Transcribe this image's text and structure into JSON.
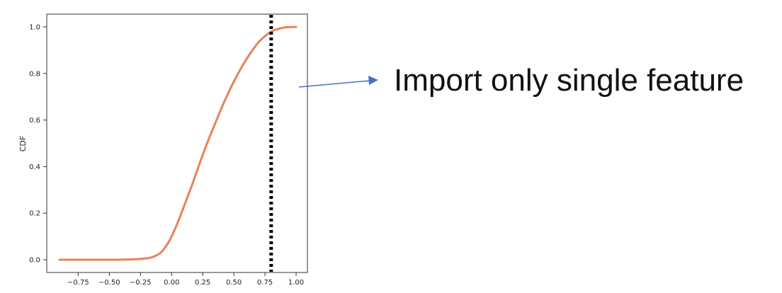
{
  "chart_data": {
    "type": "line",
    "title": "",
    "xlabel": "",
    "ylabel": "CDF",
    "xlim": [
      -0.9,
      1.0
    ],
    "ylim": [
      0.0,
      1.0
    ],
    "xticks": [
      -0.75,
      -0.5,
      -0.25,
      0.0,
      0.25,
      0.5,
      0.75,
      1.0
    ],
    "xtick_labels": [
      "−0.75",
      "−0.50",
      "−0.25",
      "0.00",
      "0.25",
      "0.50",
      "0.75",
      "1.00"
    ],
    "yticks": [
      0.0,
      0.2,
      0.4,
      0.6,
      0.8,
      1.0
    ],
    "ytick_labels": [
      "0.0",
      "0.2",
      "0.4",
      "0.6",
      "0.8",
      "1.0"
    ],
    "grid": false,
    "series": [
      {
        "color": "#e8825a",
        "x": [
          -0.9,
          -0.5,
          -0.3,
          -0.2,
          -0.15,
          -0.1,
          -0.07,
          -0.03,
          0.0,
          0.05,
          0.1,
          0.15,
          0.2,
          0.25,
          0.3,
          0.35,
          0.4,
          0.45,
          0.5,
          0.55,
          0.6,
          0.65,
          0.7,
          0.75,
          0.8,
          0.85,
          0.9,
          0.95,
          1.0
        ],
        "y": [
          0.0,
          0.0,
          0.002,
          0.006,
          0.012,
          0.025,
          0.04,
          0.07,
          0.1,
          0.16,
          0.23,
          0.3,
          0.375,
          0.45,
          0.52,
          0.585,
          0.65,
          0.71,
          0.765,
          0.815,
          0.86,
          0.9,
          0.935,
          0.96,
          0.98,
          0.99,
          0.997,
          0.999,
          1.0
        ]
      }
    ],
    "threshold_line": {
      "x": 0.8,
      "color": "#000000",
      "style": "dotted"
    }
  },
  "annotation": {
    "text": "Import only single feature",
    "arrow_color": "#4472c4"
  }
}
